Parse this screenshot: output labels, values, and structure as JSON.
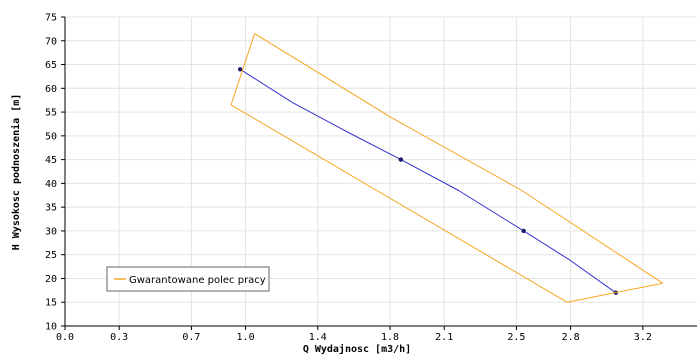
{
  "chart_data": {
    "type": "line",
    "xlabel": "Q Wydajnosc [m3/h]",
    "ylabel": "H Wysokosc podnoszenia [m]",
    "xlim": [
      0,
      3.5
    ],
    "ylim": [
      10,
      75
    ],
    "x_ticks": [
      0.0,
      0.3,
      0.7,
      1.0,
      1.4,
      1.8,
      2.1,
      2.5,
      2.8,
      3.2
    ],
    "x_tick_labels": [
      "0.0",
      "0.3",
      "0.7",
      "1.0",
      "1.4",
      "1.8",
      "2.1",
      "2.5",
      "2.8",
      "3.2"
    ],
    "y_ticks": [
      10,
      15,
      20,
      25,
      30,
      35,
      40,
      45,
      50,
      55,
      60,
      65,
      70,
      75
    ],
    "grid": true,
    "legend_position": "bottom-left",
    "series": [
      {
        "role": "curve",
        "color": "#3333cc",
        "x": [
          0.97,
          1.26,
          1.58,
          1.86,
          2.18,
          2.54,
          2.79,
          3.05
        ],
        "y": [
          64,
          57,
          50.5,
          45,
          38.5,
          30,
          24,
          17
        ],
        "markers": [
          [
            0.97,
            64
          ],
          [
            1.86,
            45
          ],
          [
            2.54,
            30
          ],
          [
            3.05,
            17
          ]
        ]
      },
      {
        "name": "Gwarantowane polec pracy",
        "role": "envelope",
        "color": "#f5a623",
        "x": [
          1.05,
          1.8,
          2.53,
          3.31,
          2.78,
          0.92,
          1.05
        ],
        "y": [
          71.5,
          54,
          38.5,
          19,
          15,
          56.5,
          71.5
        ]
      }
    ]
  },
  "legend": {
    "label": "Gwarantowane polec pracy"
  }
}
